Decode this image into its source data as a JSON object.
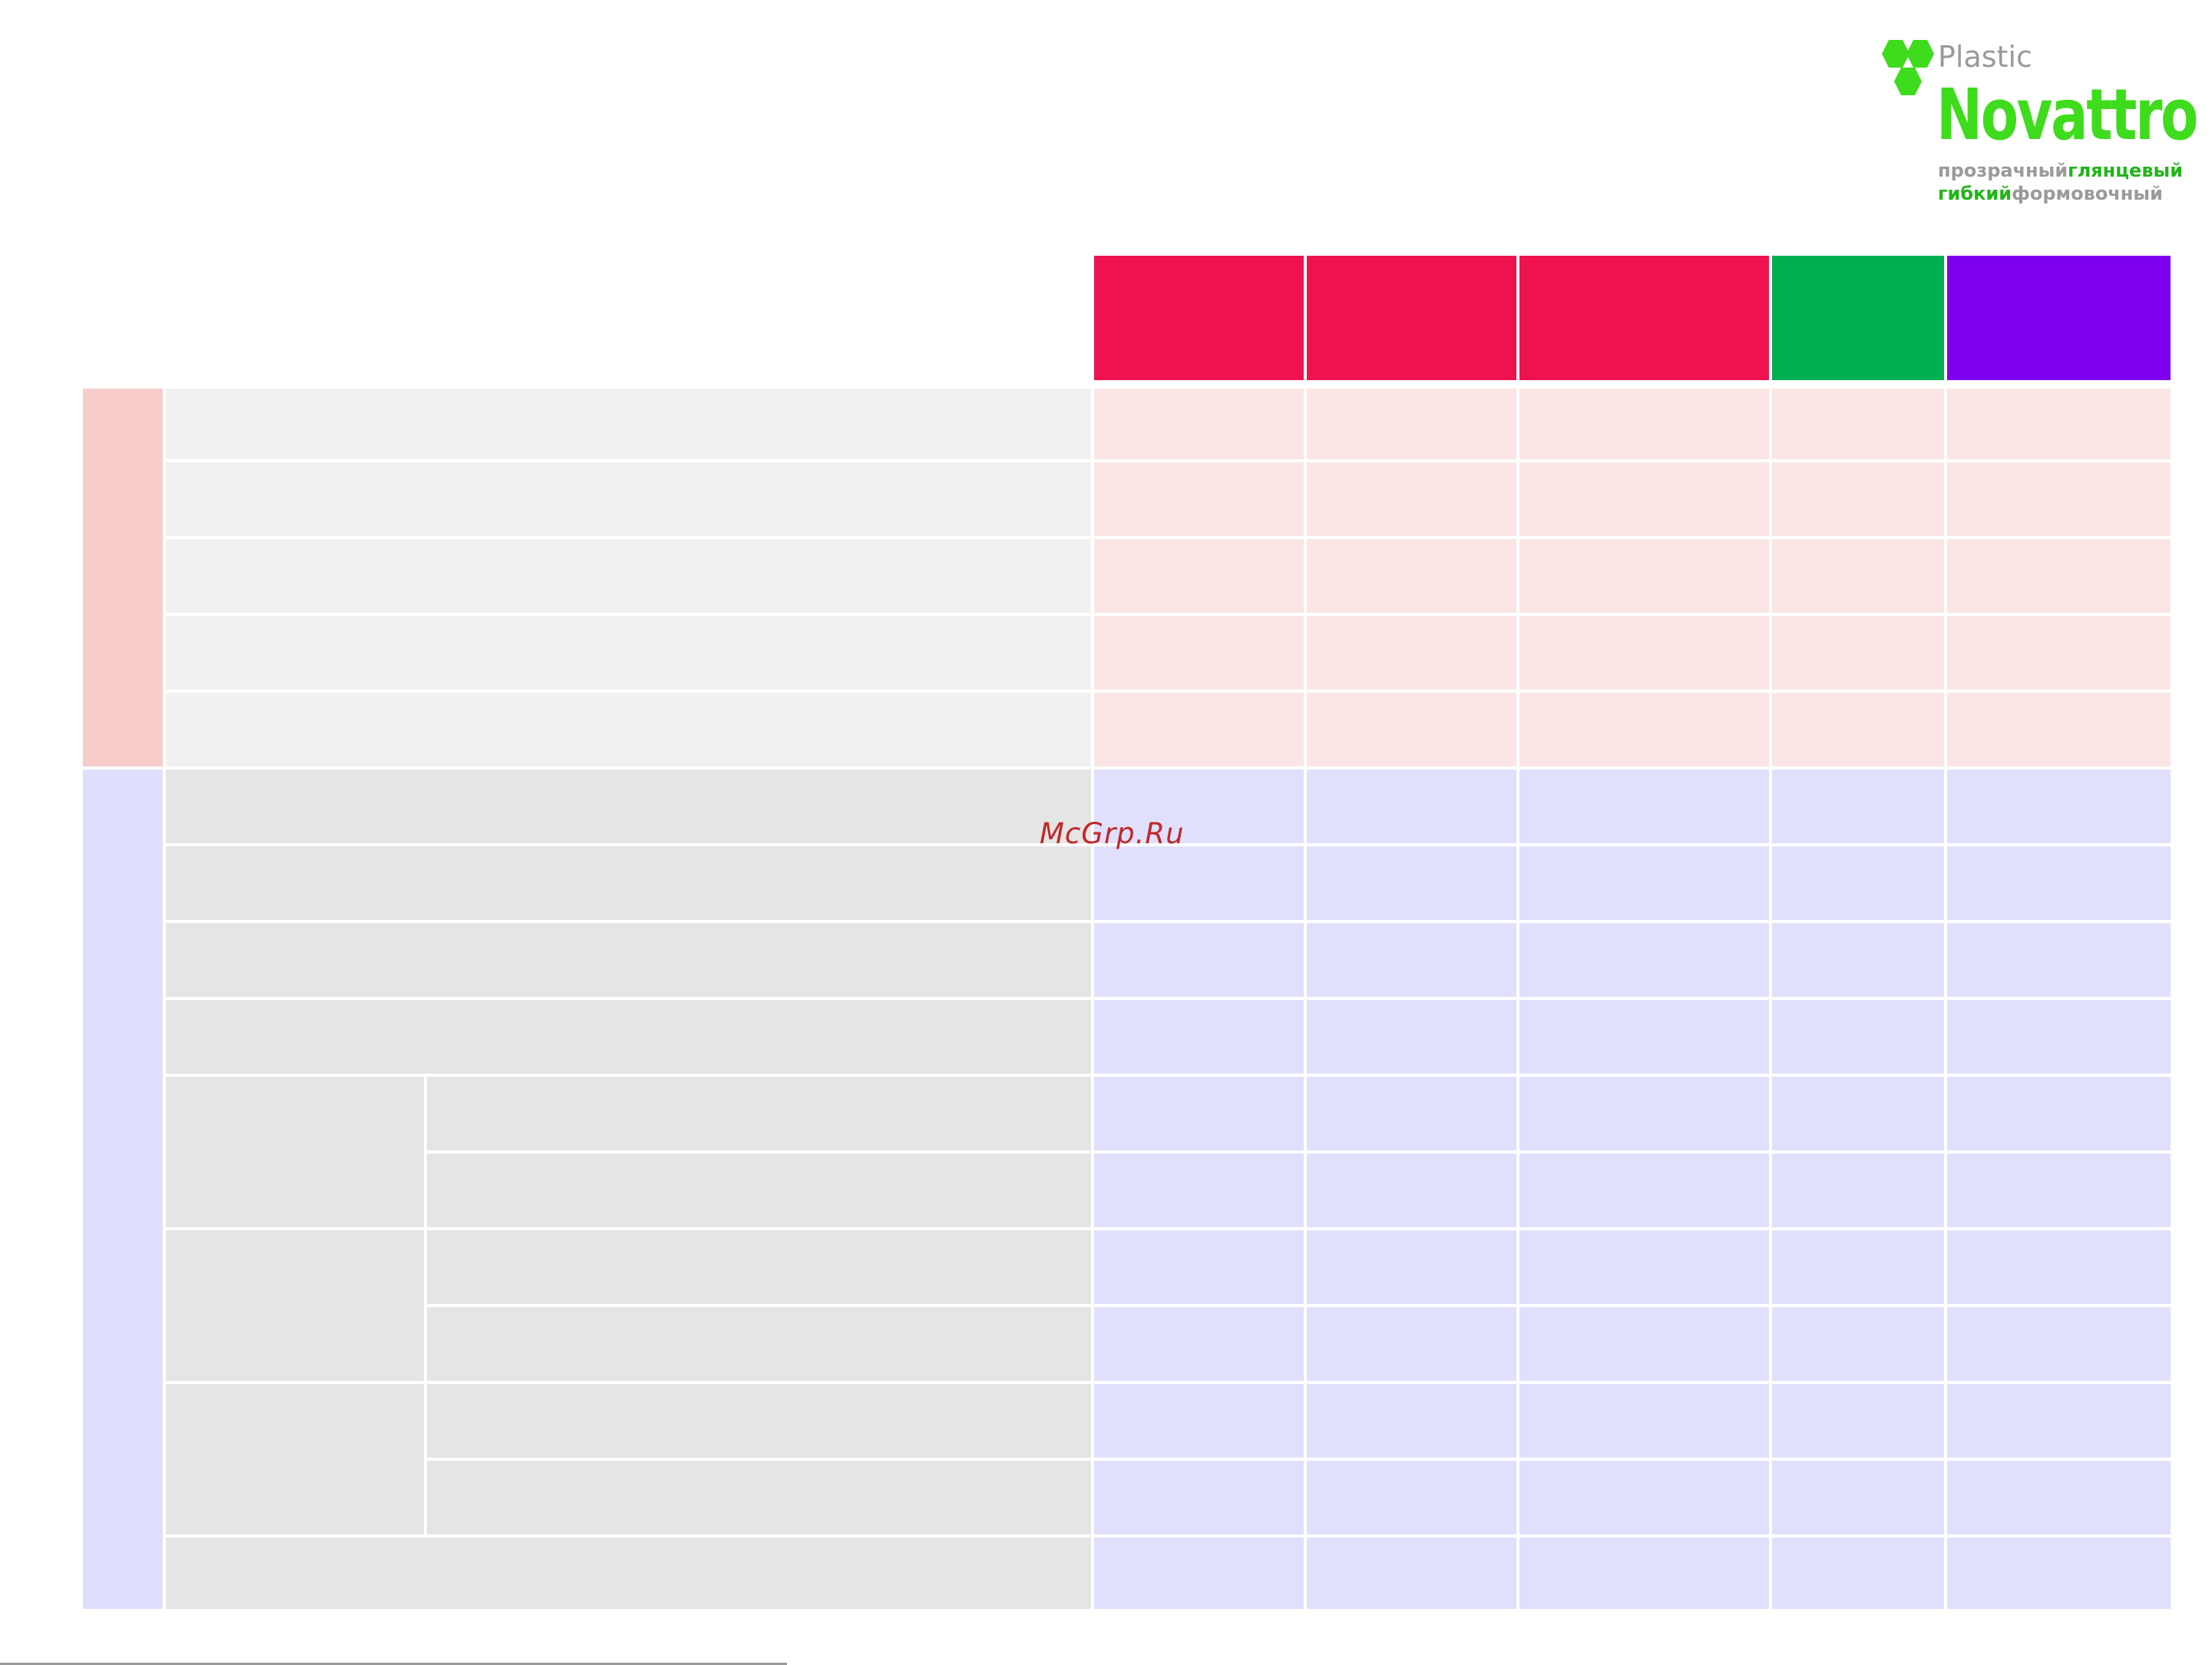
{
  "logo": {
    "plastic": "Plastic",
    "name": "Novattro",
    "tag_line1_a": "прозрачный",
    "tag_line1_b": "глянцевый",
    "tag_line2_a": "гибкий",
    "tag_line2_b": "формовочный",
    "colors": {
      "brand_green": "#3edc1c",
      "tag_green": "#22b41a",
      "grey": "#9a9a9a"
    }
  },
  "header_colors": [
    "#ee1250",
    "#ee1250",
    "#ee1250",
    "#00af50",
    "#7f00ee"
  ],
  "table": {
    "group_a_color": "#f9cccc",
    "group_b_color": "#dfdffd",
    "group_a_value_color": "#fbe5e5",
    "group_b_value_color": "#e0e0fc"
  },
  "watermark": "McGrp.Ru"
}
